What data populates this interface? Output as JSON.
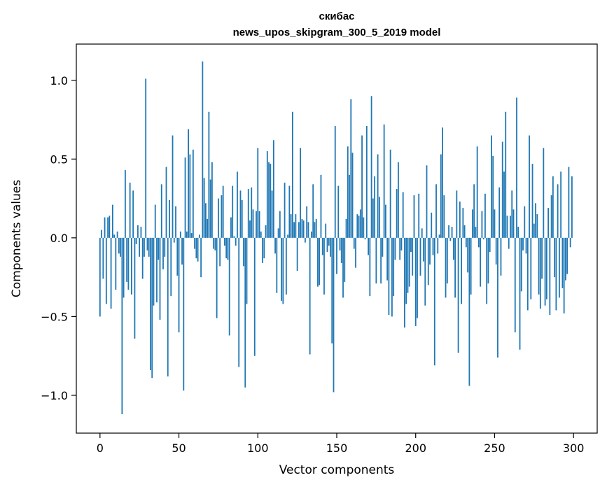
{
  "chart_data": {
    "type": "bar",
    "title": "скибас",
    "subtitle": "news_upos_skipgram_300_5_2019 model",
    "xlabel": "Vector components",
    "ylabel": "Components values",
    "xlim": [
      -15,
      315
    ],
    "ylim": [
      -1.24,
      1.23
    ],
    "x_ticks": [
      {
        "value": 0,
        "label": "0"
      },
      {
        "value": 50,
        "label": "50"
      },
      {
        "value": 100,
        "label": "100"
      },
      {
        "value": 150,
        "label": "150"
      },
      {
        "value": 200,
        "label": "200"
      },
      {
        "value": 250,
        "label": "250"
      },
      {
        "value": 300,
        "label": "300"
      }
    ],
    "y_ticks": [
      {
        "value": -1.0,
        "label": "−1.0"
      },
      {
        "value": -0.5,
        "label": "−0.5"
      },
      {
        "value": 0.0,
        "label": "0.0"
      },
      {
        "value": 0.5,
        "label": "0.5"
      },
      {
        "value": 1.0,
        "label": "1.0"
      }
    ],
    "grid": false,
    "bar_color": "#1f77b4",
    "series": [
      {
        "values": [
          -0.5,
          0.05,
          -0.26,
          0.13,
          -0.42,
          0.13,
          0.14,
          -0.45,
          0.21,
          0.02,
          -0.33,
          0.04,
          -0.1,
          -0.12,
          -1.12,
          -0.38,
          0.43,
          -0.28,
          -0.33,
          0.35,
          -0.36,
          0.3,
          -0.64,
          -0.04,
          0.08,
          -0.12,
          0.07,
          -0.26,
          -0.12,
          1.01,
          -0.08,
          -0.12,
          -0.84,
          -0.89,
          -0.43,
          0.21,
          -0.41,
          -0.14,
          -0.52,
          0.34,
          -0.2,
          -0.12,
          0.45,
          -0.88,
          0.24,
          -0.37,
          0.65,
          -0.03,
          0.2,
          -0.24,
          -0.6,
          0.04,
          -0.17,
          -0.97,
          0.51,
          0.04,
          0.69,
          0.53,
          0.03,
          0.56,
          -0.07,
          -0.13,
          -0.15,
          0.02,
          -0.25,
          1.12,
          0.38,
          0.22,
          0.12,
          0.8,
          0.37,
          0.48,
          -0.07,
          -0.08,
          -0.51,
          0.25,
          -0.18,
          0.27,
          0.33,
          -0.05,
          -0.13,
          -0.14,
          -0.62,
          0.13,
          0.33,
          0.01,
          -0.05,
          0.42,
          -0.82,
          0.3,
          0.24,
          -0.18,
          -0.95,
          -0.42,
          0.31,
          0.11,
          0.32,
          0.18,
          -0.75,
          0.17,
          0.57,
          0.17,
          0.04,
          -0.16,
          -0.13,
          0.08,
          0.55,
          0.48,
          0.47,
          0.3,
          0.62,
          -0.1,
          -0.35,
          0.06,
          0.17,
          -0.4,
          -0.42,
          0.35,
          -0.36,
          0.02,
          0.33,
          0.15,
          0.8,
          0.1,
          0.15,
          -0.21,
          0.1,
          0.57,
          0.12,
          0.11,
          -0.03,
          0.2,
          0.1,
          -0.74,
          0.04,
          0.34,
          0.1,
          0.12,
          -0.31,
          -0.3,
          0.4,
          -0.11,
          -0.36,
          0.09,
          -0.09,
          -0.05,
          -0.12,
          -0.67,
          -0.98,
          0.71,
          -0.23,
          0.33,
          -0.08,
          -0.16,
          -0.38,
          -0.28,
          0.12,
          0.58,
          0.4,
          0.88,
          0.54,
          -0.07,
          -0.19,
          0.15,
          0.14,
          0.18,
          0.65,
          0.13,
          -0.01,
          0.71,
          -0.11,
          -0.37,
          0.9,
          0.25,
          0.39,
          -0.29,
          0.53,
          0.26,
          -0.29,
          -0.12,
          0.72,
          0.21,
          -0.27,
          -0.49,
          0.56,
          -0.5,
          -0.37,
          -0.14,
          0.31,
          0.48,
          -0.14,
          -0.08,
          0.29,
          -0.57,
          -0.42,
          -0.35,
          -0.31,
          -0.09,
          -0.24,
          0.27,
          -0.56,
          -0.51,
          0.28,
          -0.24,
          0.06,
          -0.15,
          -0.43,
          0.46,
          -0.3,
          -0.17,
          0.16,
          -0.11,
          -0.81,
          0.34,
          -0.1,
          0.02,
          0.53,
          0.7,
          0.27,
          -0.38,
          -0.29,
          0.08,
          -0.02,
          0.07,
          -0.14,
          -0.38,
          0.3,
          -0.73,
          0.23,
          -0.42,
          0.19,
          0.08,
          -0.06,
          -0.22,
          -0.94,
          -0.36,
          0.18,
          0.34,
          0.07,
          0.58,
          -0.06,
          -0.31,
          0.17,
          -0.01,
          0.28,
          -0.42,
          -0.29,
          -0.09,
          0.65,
          0.52,
          0.18,
          -0.17,
          -0.76,
          0.32,
          -0.24,
          0.61,
          0.42,
          0.8,
          0.14,
          -0.07,
          0.14,
          0.3,
          0.18,
          -0.6,
          0.89,
          0.07,
          -0.71,
          -0.34,
          -0.08,
          0.2,
          -0.1,
          -0.46,
          0.65,
          -0.39,
          0.47,
          0.09,
          0.22,
          0.15,
          -0.36,
          -0.45,
          -0.26,
          0.57,
          -0.43,
          -0.39,
          0.19,
          -0.49,
          0.27,
          0.39,
          -0.25,
          -0.46,
          0.34,
          -0.38,
          0.42,
          -0.32,
          -0.48,
          -0.27,
          -0.23,
          0.45,
          -0.06,
          0.39
        ]
      }
    ]
  }
}
